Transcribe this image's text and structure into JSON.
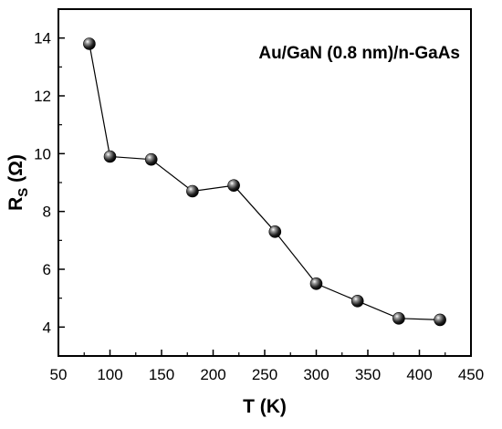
{
  "chart_data": {
    "type": "scatter",
    "title": "",
    "annotation": "Au/GaN (0.8 nm)/n-GaAs",
    "xlabel": "T (K)",
    "ylabel": {
      "main": "R",
      "subscript": "S",
      "unit": " (Ω)"
    },
    "xlim": [
      50,
      450
    ],
    "ylim": [
      3,
      15
    ],
    "xticks": [
      50,
      100,
      150,
      200,
      250,
      300,
      350,
      400,
      450
    ],
    "yticks": [
      4,
      6,
      8,
      10,
      12,
      14
    ],
    "grid": false,
    "legend": "none",
    "series": [
      {
        "color": "#000000",
        "marker": "sphere",
        "connected": true,
        "points": [
          {
            "x": 80,
            "y": 13.8
          },
          {
            "x": 100,
            "y": 9.9
          },
          {
            "x": 140,
            "y": 9.8
          },
          {
            "x": 180,
            "y": 8.7
          },
          {
            "x": 220,
            "y": 8.9
          },
          {
            "x": 260,
            "y": 7.3
          },
          {
            "x": 300,
            "y": 5.5
          },
          {
            "x": 340,
            "y": 4.9
          },
          {
            "x": 380,
            "y": 4.3
          },
          {
            "x": 420,
            "y": 4.25
          }
        ]
      }
    ]
  }
}
